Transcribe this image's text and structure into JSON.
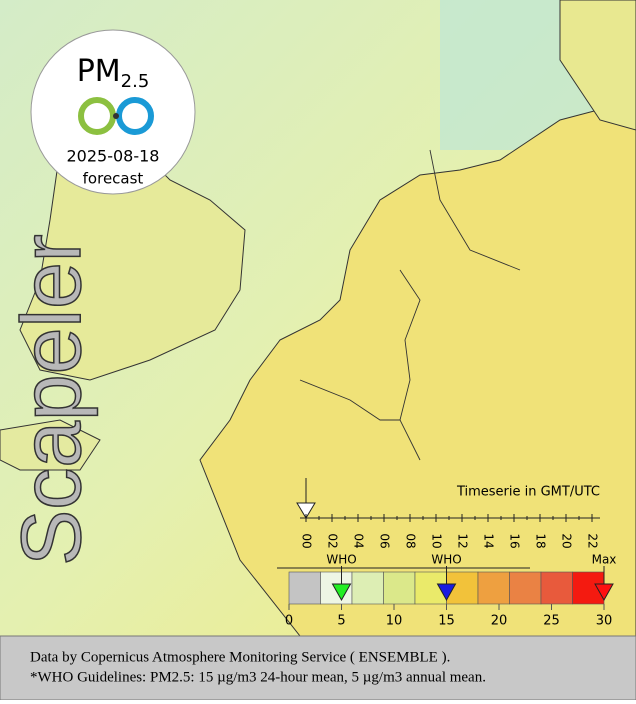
{
  "badge": {
    "title": "PM",
    "subscript": "2.5",
    "date": "2025-08-18",
    "label": "forecast"
  },
  "watermark": "Scapeler",
  "timeline": {
    "title": "Timeserie in GMT/UTC",
    "ticks": [
      "00",
      "02",
      "04",
      "06",
      "08",
      "10",
      "12",
      "14",
      "16",
      "18",
      "20",
      "22"
    ]
  },
  "legend": {
    "bins": [
      0,
      3,
      6,
      9,
      12,
      15,
      18,
      21,
      24,
      27,
      30
    ],
    "colors": [
      "#c4c4c4",
      "#eef6e4",
      "#ddeeb4",
      "#dbe88a",
      "#eaea6a",
      "#f2c23a",
      "#eea040",
      "#ea8244",
      "#e85a3c",
      "#f41a10"
    ],
    "ticks": [
      0,
      5,
      10,
      15,
      20,
      25,
      30
    ],
    "markers": [
      {
        "label": "WHO",
        "value": 5,
        "color": "#22ee22"
      },
      {
        "label": "WHO",
        "value": 15,
        "color": "#1a1ae0"
      },
      {
        "label": "Max",
        "value": 30,
        "color": "#ff1010"
      }
    ]
  },
  "footer": {
    "lines": [
      "Data by Copernicus Atmosphere Monitoring Service ( ENSEMBLE ).",
      "*WHO Guidelines: PM2.5: 15 µg/m3 24-hour mean, 5 µg/m3 annual mean."
    ]
  }
}
